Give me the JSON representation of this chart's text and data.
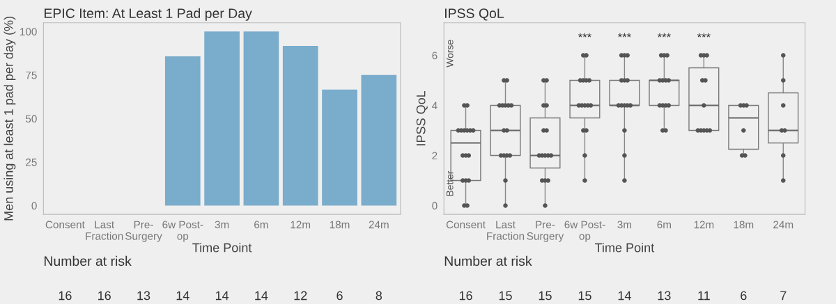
{
  "chart_data": [
    {
      "type": "bar",
      "title": "EPIC Item: At Least 1 Pad per Day",
      "xlabel": "Time Point",
      "ylabel": "Men using at least 1 pad per day (%)",
      "categories": [
        "Consent",
        "Last\nFraction",
        "Pre-\nSurgery",
        "6w Post-\nop",
        "3m",
        "6m",
        "12m",
        "18m",
        "24m"
      ],
      "values": [
        0,
        0,
        0,
        85.7,
        100,
        100,
        91.7,
        66.7,
        75
      ],
      "color": "#7aaccc",
      "ylim": [
        -5,
        105
      ],
      "yticks": [
        0,
        25,
        50,
        75,
        100
      ],
      "grid": false,
      "annotations": [
        "Number at risk",
        "16",
        "16",
        "13",
        "14",
        "14",
        "14",
        "12",
        "6",
        "8"
      ]
    },
    {
      "type": "box",
      "title": "IPSS QoL",
      "xlabel": "Time Point",
      "ylabel": "IPSS QoL",
      "categories": [
        "Consent",
        "Last\nFraction",
        "Pre-\nSurgery",
        "6w Post-\nop",
        "3m",
        "6m",
        "12m",
        "18m",
        "24m"
      ],
      "boxes": [
        {
          "low": 0,
          "q1": 1,
          "median": 2.5,
          "q3": 3,
          "high": 4
        },
        {
          "low": 0,
          "q1": 2,
          "median": 3,
          "q3": 4,
          "high": 5
        },
        {
          "low": 0,
          "q1": 1.5,
          "median": 2,
          "q3": 3.5,
          "high": 5
        },
        {
          "low": 1,
          "q1": 3.5,
          "median": 4,
          "q3": 5,
          "high": 6
        },
        {
          "low": 1,
          "q1": 4,
          "median": 4,
          "q3": 5,
          "high": 6
        },
        {
          "low": 3,
          "q1": 4,
          "median": 5,
          "q3": 5,
          "high": 6
        },
        {
          "low": 3,
          "q1": 3,
          "median": 4,
          "q3": 5.5,
          "high": 6
        },
        {
          "low": 2,
          "q1": 2.25,
          "median": 3.5,
          "q3": 4,
          "high": 4
        },
        {
          "low": 1,
          "q1": 2.5,
          "median": 3,
          "q3": 4.5,
          "high": 6
        }
      ],
      "series": [
        {
          "type": "scatter",
          "color": "#555555",
          "x": [
            "Consent",
            "Consent",
            "Consent",
            "Consent",
            "Consent",
            "Consent",
            "Consent",
            "Consent",
            "Consent",
            "Consent",
            "Consent",
            "Consent",
            "Consent",
            "Consent",
            "Consent",
            "Consent",
            "Last\nFraction",
            "Last\nFraction",
            "Last\nFraction",
            "Last\nFraction",
            "Last\nFraction",
            "Last\nFraction",
            "Last\nFraction",
            "Last\nFraction",
            "Last\nFraction",
            "Last\nFraction",
            "Last\nFraction",
            "Last\nFraction",
            "Last\nFraction",
            "Last\nFraction",
            "Last\nFraction",
            "Pre-\nSurgery",
            "Pre-\nSurgery",
            "Pre-\nSurgery",
            "Pre-\nSurgery",
            "Pre-\nSurgery",
            "Pre-\nSurgery",
            "Pre-\nSurgery",
            "Pre-\nSurgery",
            "Pre-\nSurgery",
            "Pre-\nSurgery",
            "Pre-\nSurgery",
            "Pre-\nSurgery",
            "Pre-\nSurgery",
            "Pre-\nSurgery",
            "Pre-\nSurgery",
            "6w Post-\nop",
            "6w Post-\nop",
            "6w Post-\nop",
            "6w Post-\nop",
            "6w Post-\nop",
            "6w Post-\nop",
            "6w Post-\nop",
            "6w Post-\nop",
            "6w Post-\nop",
            "6w Post-\nop",
            "6w Post-\nop",
            "6w Post-\nop",
            "6w Post-\nop",
            "6w Post-\nop",
            "6w Post-\nop",
            "3m",
            "3m",
            "3m",
            "3m",
            "3m",
            "3m",
            "3m",
            "3m",
            "3m",
            "3m",
            "3m",
            "3m",
            "3m",
            "3m",
            "6m",
            "6m",
            "6m",
            "6m",
            "6m",
            "6m",
            "6m",
            "6m",
            "6m",
            "6m",
            "6m",
            "6m",
            "6m",
            "12m",
            "12m",
            "12m",
            "12m",
            "12m",
            "12m",
            "12m",
            "12m",
            "12m",
            "12m",
            "12m",
            "18m",
            "18m",
            "18m",
            "18m",
            "18m",
            "18m",
            "24m",
            "24m",
            "24m",
            "24m",
            "24m",
            "24m",
            "24m"
          ],
          "values": [
            0,
            0,
            1,
            1,
            1,
            2,
            2,
            2,
            3,
            3,
            3,
            3,
            3,
            3,
            4,
            4,
            0,
            1,
            2,
            2,
            2,
            2,
            3,
            3,
            4,
            4,
            4,
            4,
            4,
            5,
            5,
            0,
            1,
            1,
            1,
            2,
            2,
            2,
            2,
            2,
            3,
            3,
            4,
            4,
            5,
            5,
            1,
            2,
            3,
            3,
            4,
            4,
            4,
            4,
            4,
            5,
            5,
            5,
            5,
            6,
            6,
            1,
            2,
            3,
            4,
            4,
            4,
            4,
            4,
            5,
            5,
            5,
            6,
            6,
            6,
            3,
            3,
            4,
            4,
            4,
            4,
            5,
            5,
            5,
            5,
            6,
            6,
            6,
            3,
            3,
            3,
            3,
            3,
            4,
            5,
            5,
            6,
            6,
            6,
            2,
            2,
            3,
            4,
            4,
            4,
            1,
            2,
            3,
            3,
            4,
            5,
            6
          ]
        }
      ],
      "ylim": [
        -0.35,
        7.3
      ],
      "yticks": [
        0,
        2,
        4,
        6
      ],
      "grid": false,
      "annotations": [
        "***",
        "***",
        "***",
        "***",
        "Worse",
        "Better",
        "Number at risk",
        "16",
        "15",
        "15",
        "15",
        "14",
        "13",
        "11",
        "6",
        "7"
      ]
    }
  ]
}
